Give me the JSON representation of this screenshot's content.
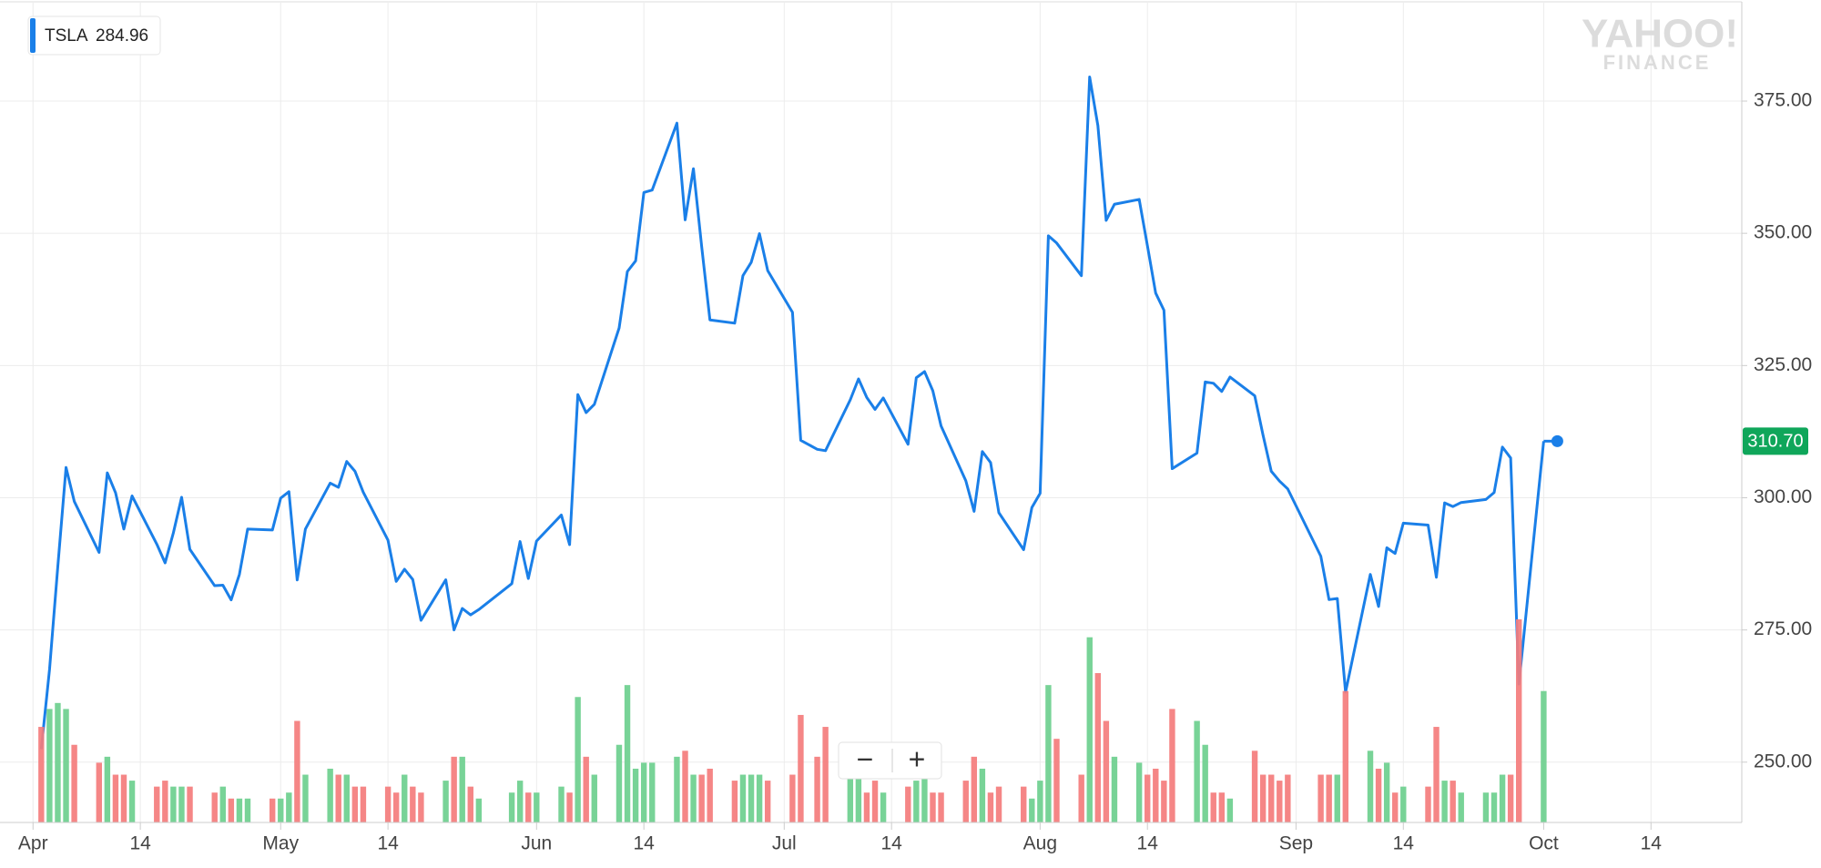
{
  "chart_data": {
    "type": "line",
    "series": [
      {
        "name": "TSLA",
        "color": "#1a7fe8",
        "values": [
          252.48,
          267.53,
          286.94,
          305.72,
          299.3,
          289.66,
          304.7,
          300.93,
          294.08,
          300.34,
          291.21,
          287.69,
          293.35,
          300.08,
          290.24,
          283.37,
          283.46,
          280.69,
          285.48,
          294.08,
          293.9,
          299.92,
          301.15,
          284.45,
          294.09,
          302.77,
          301.97,
          306.85,
          305.02,
          301.06,
          291.97,
          284.18,
          286.48,
          284.54,
          276.82,
          284.49,
          275.01,
          279.07,
          277.85,
          278.85,
          283.76,
          291.72,
          284.73,
          291.82,
          296.74,
          291.13,
          319.5,
          316.09,
          317.66,
          332.1,
          342.77,
          344.78,
          357.72,
          358.17,
          370.83,
          352.55,
          362.22,
          347.51,
          333.63,
          333.01,
          342.0,
          344.5,
          349.93,
          342.95,
          335.07,
          310.86,
          309.16,
          308.9,
          318.51,
          322.47,
          318.96,
          316.71,
          318.87,
          310.1,
          322.69,
          323.85,
          320.23,
          313.58,
          303.2,
          297.43,
          308.74,
          306.65,
          297.18,
          290.17,
          298.14,
          300.84,
          349.54,
          348.17,
          341.99,
          379.57,
          370.34,
          352.45,
          355.49,
          356.41,
          347.64,
          338.69,
          335.45,
          305.5,
          308.44,
          321.9,
          321.64,
          320.1,
          322.82,
          319.27,
          311.86,
          305.01,
          303.15,
          301.66,
          288.95,
          280.74,
          280.95,
          263.24,
          285.5,
          279.44,
          290.54,
          289.46,
          295.2,
          294.84,
          284.96,
          299.02,
          298.33,
          299.1,
          299.68,
          300.99,
          309.58,
          307.52,
          264.77,
          310.7
        ]
      }
    ],
    "x": [
      "Apr 2",
      "Apr 3",
      "Apr 4",
      "Apr 5",
      "Apr 6",
      "Apr 9",
      "Apr 10",
      "Apr 11",
      "Apr 12",
      "Apr 13",
      "Apr 16",
      "Apr 17",
      "Apr 18",
      "Apr 19",
      "Apr 20",
      "Apr 23",
      "Apr 24",
      "Apr 25",
      "Apr 26",
      "Apr 27",
      "Apr 30",
      "May 1",
      "May 2",
      "May 3",
      "May 4",
      "May 7",
      "May 8",
      "May 9",
      "May 10",
      "May 11",
      "May 14",
      "May 15",
      "May 16",
      "May 17",
      "May 18",
      "May 21",
      "May 22",
      "May 23",
      "May 24",
      "May 25",
      "May 29",
      "May 30",
      "May 31",
      "Jun 1",
      "Jun 4",
      "Jun 5",
      "Jun 6",
      "Jun 7",
      "Jun 8",
      "Jun 11",
      "Jun 12",
      "Jun 13",
      "Jun 14",
      "Jun 15",
      "Jun 18",
      "Jun 19",
      "Jun 20",
      "Jun 21",
      "Jun 22",
      "Jun 25",
      "Jun 26",
      "Jun 27",
      "Jun 28",
      "Jun 29",
      "Jul 2",
      "Jul 3",
      "Jul 5",
      "Jul 6",
      "Jul 9",
      "Jul 10",
      "Jul 11",
      "Jul 12",
      "Jul 13",
      "Jul 16",
      "Jul 17",
      "Jul 18",
      "Jul 19",
      "Jul 20",
      "Jul 23",
      "Jul 24",
      "Jul 25",
      "Jul 26",
      "Jul 27",
      "Jul 30",
      "Jul 31",
      "Aug 1",
      "Aug 2",
      "Aug 3",
      "Aug 6",
      "Aug 7",
      "Aug 8",
      "Aug 9",
      "Aug 10",
      "Aug 13",
      "Aug 14",
      "Aug 15",
      "Aug 16",
      "Aug 17",
      "Aug 20",
      "Aug 21",
      "Aug 22",
      "Aug 23",
      "Aug 24",
      "Aug 27",
      "Aug 28",
      "Aug 29",
      "Aug 30",
      "Aug 31",
      "Sep 4",
      "Sep 5",
      "Sep 6",
      "Sep 7",
      "Sep 10",
      "Sep 11",
      "Sep 12",
      "Sep 13",
      "Sep 14",
      "Sep 17",
      "Sep 18",
      "Sep 19",
      "Sep 20",
      "Sep 21",
      "Sep 24",
      "Sep 25",
      "Sep 26",
      "Sep 27",
      "Sep 28",
      "Oct 1"
    ],
    "volume": {
      "up_color": "#6ccf8e",
      "down_color": "#f47c7c",
      "first_bar_color": "#f47c7c",
      "values": [
        16,
        19,
        20,
        19,
        13,
        10,
        11,
        8,
        8,
        7,
        6,
        7,
        6,
        6,
        6,
        5,
        6,
        4,
        4,
        4,
        4,
        4,
        5,
        17,
        8,
        9,
        8,
        8,
        6,
        6,
        6,
        5,
        8,
        6,
        5,
        7,
        11,
        11,
        6,
        4,
        5,
        7,
        5,
        5,
        6,
        5,
        21,
        11,
        8,
        13,
        23,
        9,
        10,
        10,
        11,
        12,
        8,
        8,
        9,
        7,
        8,
        8,
        8,
        7,
        8,
        18,
        11,
        16,
        9,
        8,
        5,
        7,
        5,
        6,
        7,
        9,
        5,
        5,
        7,
        11,
        9,
        5,
        6,
        6,
        4,
        7,
        23,
        14,
        8,
        31,
        25,
        17,
        11,
        10,
        8,
        9,
        7,
        19,
        17,
        13,
        5,
        5,
        4,
        12,
        8,
        8,
        7,
        8,
        8,
        8,
        8,
        22,
        12,
        9,
        10,
        5,
        6,
        6,
        16,
        7,
        7,
        5,
        5,
        5,
        8,
        8,
        34,
        22
      ]
    },
    "xlim": [
      "Mar 28",
      "Oct 25"
    ],
    "xticks": [
      {
        "value": "Apr 1",
        "label": "Apr"
      },
      {
        "value": "Apr 14",
        "label": "14"
      },
      {
        "value": "May 1",
        "label": "May"
      },
      {
        "value": "May 14",
        "label": "14"
      },
      {
        "value": "Jun 1",
        "label": "Jun"
      },
      {
        "value": "Jun 14",
        "label": "14"
      },
      {
        "value": "Jul 1",
        "label": "Jul"
      },
      {
        "value": "Jul 14",
        "label": "14"
      },
      {
        "value": "Aug 1",
        "label": "Aug"
      },
      {
        "value": "Aug 14",
        "label": "14"
      },
      {
        "value": "Sep 1",
        "label": "Sep"
      },
      {
        "value": "Sep 14",
        "label": "14"
      },
      {
        "value": "Oct 1",
        "label": "Oct"
      },
      {
        "value": "Oct 14",
        "label": "14"
      }
    ],
    "ylim": [
      238.6,
      393.6
    ],
    "yticks": [
      {
        "value": 250,
        "label": "250.00"
      },
      {
        "value": 275,
        "label": "275.00"
      },
      {
        "value": 300,
        "label": "300.00"
      },
      {
        "value": 325,
        "label": "325.00"
      },
      {
        "value": 350,
        "label": "350.00"
      },
      {
        "value": 375,
        "label": "375.00"
      }
    ],
    "grid": true,
    "current_price": {
      "value": 310.7,
      "label": "310.70",
      "color": "#0fa65a"
    },
    "watermark": [
      "YAHOO!",
      "FINANCE"
    ]
  },
  "controls": {
    "zoom_out": "−",
    "zoom_in": "+"
  }
}
